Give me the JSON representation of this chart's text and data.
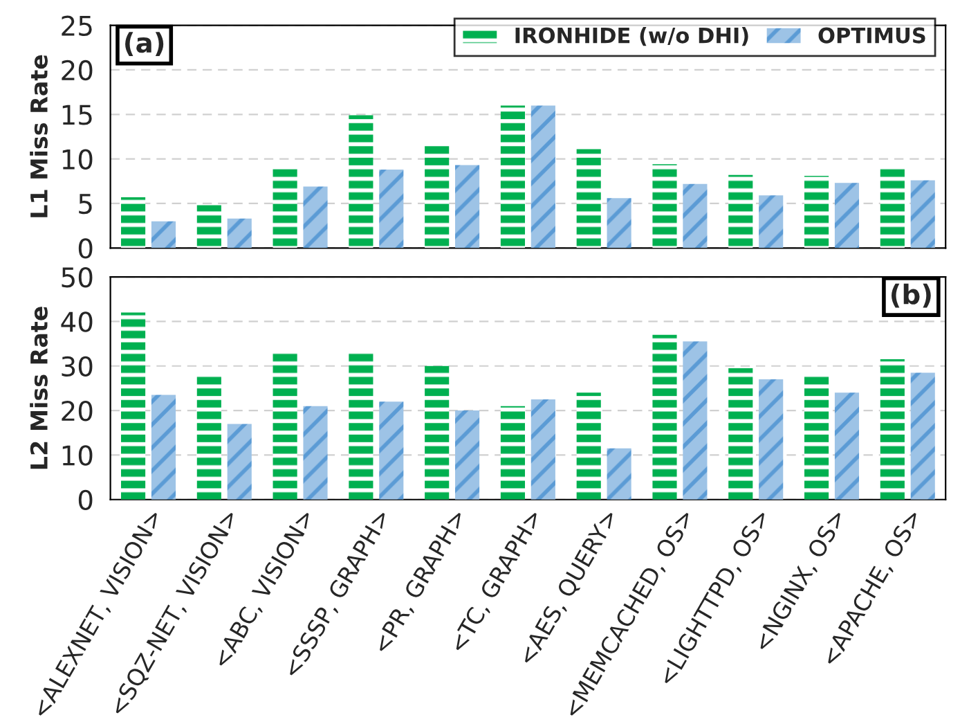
{
  "chart_data": [
    {
      "type": "bar",
      "ylabel": "L1 Miss Rate",
      "series": [
        {
          "name": "IRONHIDE (w/o DHI)",
          "color": "#00b050",
          "values": [
            5.7,
            4.8,
            8.9,
            14.9,
            11.5,
            16.0,
            11.1,
            9.4,
            8.2,
            8.1,
            9.2
          ]
        },
        {
          "name": "OPTIMUS",
          "color": "#9dc3e6",
          "values": [
            3.0,
            3.3,
            6.9,
            8.8,
            9.3,
            16.0,
            5.6,
            7.2,
            5.9,
            7.3,
            7.6
          ]
        }
      ],
      "ylim": [
        0,
        25
      ],
      "yticks": [
        0,
        5,
        10,
        15,
        20,
        25
      ],
      "grid": "y",
      "legend": "top right",
      "tick_labels": "y",
      "annotations": [
        "(a)"
      ]
    },
    {
      "type": "bar",
      "ylabel": "L2 Miss Rate",
      "categories": [
        "<ALEXNET, VISION>",
        "<SQZ-NET, VISION>",
        "<ABC, VISION>",
        "<SSSP, GRAPH>",
        "<PR, GRAPH>",
        "<TC, GRAPH>",
        "<AES, QUERY>",
        "<MEMCACHED, OS>",
        "<LIGHTTPD, OS>",
        "<NGINX, OS>",
        "<APACHE, OS>"
      ],
      "series": [
        {
          "color": "#00b050",
          "values": [
            42,
            28,
            33,
            33.5,
            30,
            21,
            24,
            37,
            29.5,
            28,
            31.5
          ]
        },
        {
          "color": "#9dc3e6",
          "values": [
            23.5,
            17,
            21,
            22,
            20,
            22.5,
            11.5,
            35.5,
            27,
            24,
            28.5
          ]
        }
      ],
      "ylim": [
        0,
        50
      ],
      "yticks": [
        0,
        10,
        20,
        30,
        40,
        50
      ],
      "grid": "y",
      "annotations": [
        "(b)"
      ]
    }
  ]
}
